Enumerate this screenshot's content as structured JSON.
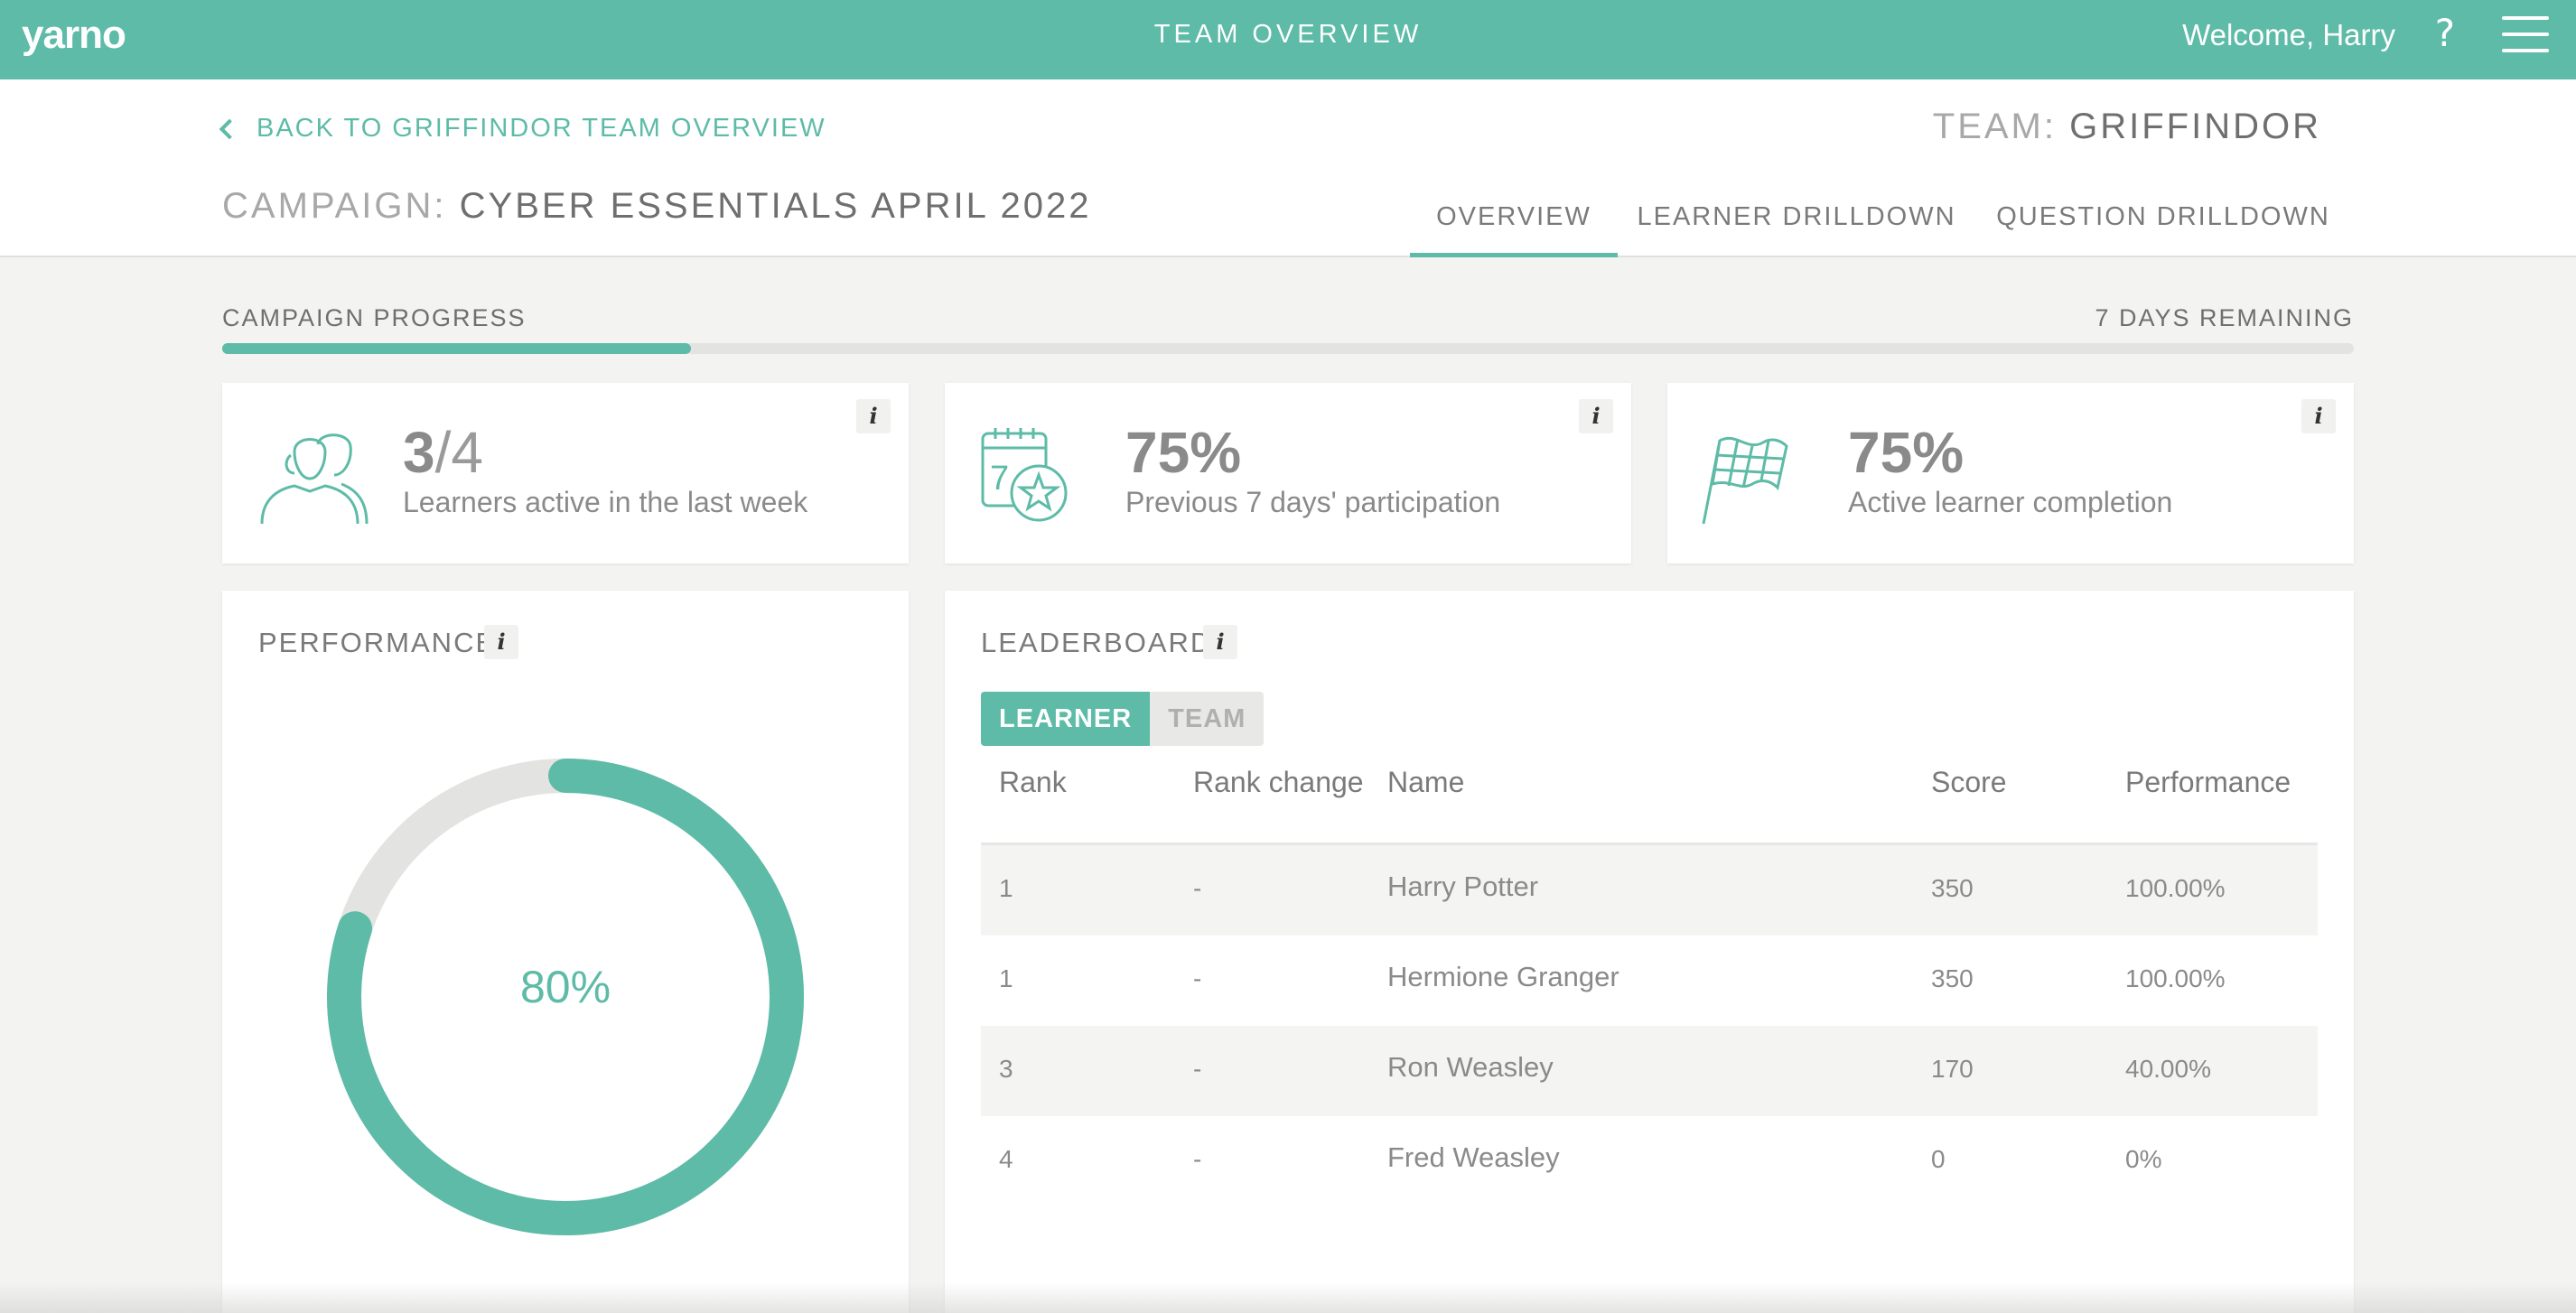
{
  "topbar": {
    "logo": "yarno",
    "title": "TEAM OVERVIEW",
    "welcome": "Welcome, Harry",
    "help": "?"
  },
  "header": {
    "back_link": "BACK TO GRIFFINDOR TEAM OVERVIEW",
    "team_key": "TEAM:",
    "team_value": "GRIFFINDOR",
    "campaign_key": "CAMPAIGN:",
    "campaign_value": "CYBER ESSENTIALS APRIL 2022",
    "tabs": [
      {
        "label": "OVERVIEW",
        "active": true
      },
      {
        "label": "LEARNER DRILLDOWN",
        "active": false
      },
      {
        "label": "QUESTION DRILLDOWN",
        "active": false
      }
    ]
  },
  "progress": {
    "label": "CAMPAIGN PROGRESS",
    "remaining": "7 DAYS REMAINING",
    "fraction": 0.22
  },
  "stats": [
    {
      "value_main": "3",
      "value_of": "/4",
      "caption": "Learners active in the last week",
      "icon": "learners-icon"
    },
    {
      "value_main": "75%",
      "value_of": "",
      "caption": "Previous 7 days' participation",
      "icon": "calendar-star-icon"
    },
    {
      "value_main": "75%",
      "value_of": "",
      "caption": "Active learner completion",
      "icon": "checkered-flag-icon"
    }
  ],
  "info_glyph": "i",
  "performance": {
    "title": "PERFORMANCE",
    "value_label": "80%",
    "value": 0.8
  },
  "leaderboard": {
    "title": "LEADERBOARD",
    "toggle": {
      "learner": "LEARNER",
      "team": "TEAM"
    },
    "columns": [
      "Rank",
      "Rank change",
      "Name",
      "Score",
      "Performance"
    ],
    "rows": [
      {
        "rank": "1",
        "change": "-",
        "name": "Harry Potter",
        "score": "350",
        "performance": "100.00%"
      },
      {
        "rank": "1",
        "change": "-",
        "name": "Hermione Granger",
        "score": "350",
        "performance": "100.00%"
      },
      {
        "rank": "3",
        "change": "-",
        "name": "Ron Weasley",
        "score": "170",
        "performance": "40.00%"
      },
      {
        "rank": "4",
        "change": "-",
        "name": "Fred Weasley",
        "score": "0",
        "performance": "0%"
      }
    ]
  },
  "colors": {
    "accent": "#5dbba7",
    "track": "#e3e3e1"
  }
}
